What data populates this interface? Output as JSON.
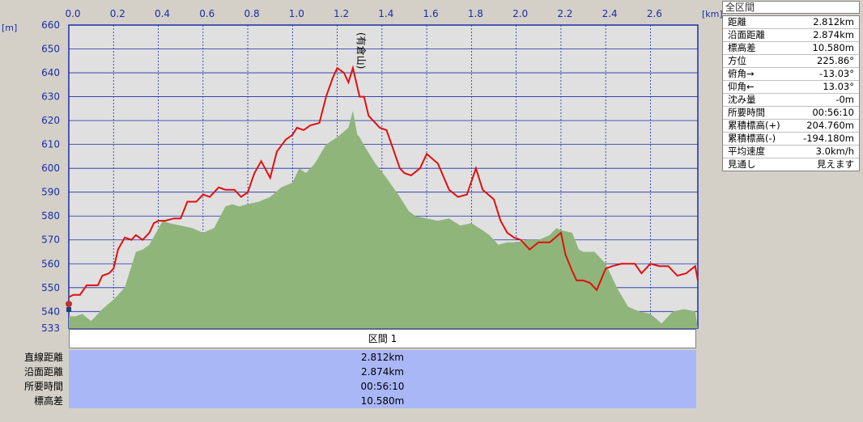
{
  "chart_data": {
    "type": "area",
    "x_unit": "[km]",
    "y_unit": "[m]",
    "x_ticks": [
      "0.0",
      "0.2",
      "0.4",
      "0.6",
      "0.8",
      "1.0",
      "1.2",
      "1.4",
      "1.6",
      "1.8",
      "2.0",
      "2.2",
      "2.4",
      "2.6"
    ],
    "y_ticks": [
      "660",
      "650",
      "640",
      "630",
      "620",
      "610",
      "600",
      "590",
      "580",
      "570",
      "560",
      "550",
      "540",
      "533"
    ],
    "xlim": [
      0,
      2.812
    ],
    "ylim": [
      533,
      660
    ],
    "grid": true,
    "peak_label": "(有倉山)",
    "peak_x": 1.3,
    "series": [
      {
        "color": "#e01010",
        "x": [
          0,
          0.02,
          0.05,
          0.08,
          0.1,
          0.13,
          0.15,
          0.18,
          0.2,
          0.22,
          0.25,
          0.28,
          0.3,
          0.33,
          0.36,
          0.38,
          0.4,
          0.43,
          0.47,
          0.5,
          0.53,
          0.57,
          0.6,
          0.63,
          0.67,
          0.7,
          0.74,
          0.77,
          0.8,
          0.83,
          0.86,
          0.9,
          0.93,
          0.97,
          1.0,
          1.02,
          1.05,
          1.08,
          1.12,
          1.15,
          1.18,
          1.2,
          1.23,
          1.25,
          1.27,
          1.3,
          1.32,
          1.34,
          1.37,
          1.39,
          1.42,
          1.45,
          1.48,
          1.5,
          1.53,
          1.57,
          1.6,
          1.65,
          1.7,
          1.74,
          1.78,
          1.82,
          1.85,
          1.9,
          1.93,
          1.96,
          1.99,
          2.02,
          2.06,
          2.1,
          2.15,
          2.2,
          2.22,
          2.25,
          2.27,
          2.3,
          2.33,
          2.36,
          2.4,
          2.43,
          2.47,
          2.5,
          2.53,
          2.56,
          2.6,
          2.64,
          2.68,
          2.72,
          2.76,
          2.8,
          2.812
        ],
        "y": [
          546,
          547,
          547,
          551,
          551,
          551,
          555,
          556,
          558,
          566,
          571,
          570,
          572,
          570,
          573,
          577,
          578,
          578,
          579,
          579,
          586,
          586,
          589,
          588,
          592,
          591,
          591,
          588,
          590,
          598,
          603,
          596,
          607,
          612,
          614,
          617,
          616,
          618,
          619,
          630,
          638,
          642,
          640,
          636,
          642,
          630,
          630,
          622,
          619,
          617,
          616,
          608,
          600,
          598,
          597,
          600,
          606,
          602,
          591,
          588,
          589,
          600,
          591,
          587,
          578,
          573,
          571,
          570,
          566,
          569,
          569,
          573,
          564,
          557,
          553,
          553,
          552,
          549,
          558,
          559,
          560,
          560,
          560,
          556,
          560,
          559,
          559,
          555,
          556,
          559,
          553
        ]
      },
      {
        "color": "#8fb57a",
        "x": [
          0,
          0.03,
          0.06,
          0.1,
          0.15,
          0.2,
          0.25,
          0.28,
          0.3,
          0.33,
          0.36,
          0.39,
          0.42,
          0.45,
          0.5,
          0.55,
          0.6,
          0.65,
          0.7,
          0.73,
          0.76,
          0.8,
          0.85,
          0.9,
          0.95,
          1.0,
          1.03,
          1.06,
          1.1,
          1.15,
          1.2,
          1.25,
          1.27,
          1.29,
          1.3,
          1.33,
          1.37,
          1.42,
          1.48,
          1.52,
          1.55,
          1.6,
          1.65,
          1.7,
          1.75,
          1.8,
          1.85,
          1.88,
          1.92,
          1.96,
          2.0,
          2.05,
          2.1,
          2.15,
          2.18,
          2.2,
          2.25,
          2.28,
          2.3,
          2.35,
          2.4,
          2.45,
          2.5,
          2.55,
          2.6,
          2.65,
          2.7,
          2.75,
          2.8,
          2.812
        ],
        "y": [
          538,
          538,
          539,
          536,
          541,
          545,
          550,
          559,
          565,
          566,
          568,
          573,
          578,
          577,
          576,
          575,
          573,
          575,
          584,
          585,
          584,
          585,
          586,
          588,
          592,
          594,
          600,
          598,
          602,
          610,
          613,
          617,
          624,
          614,
          613,
          608,
          602,
          596,
          588,
          582,
          580,
          579,
          578,
          579,
          576,
          577,
          574,
          572,
          568,
          569,
          569,
          570,
          570,
          572,
          575,
          574,
          573,
          566,
          565,
          565,
          560,
          550,
          542,
          540,
          539,
          535,
          540,
          541,
          540,
          533
        ]
      }
    ]
  },
  "summary": {
    "title": "全区間",
    "rows": [
      {
        "k": "距離",
        "v": "2.812km"
      },
      {
        "k": "沿面距離",
        "v": "2.874km"
      },
      {
        "k": "標高差",
        "v": "10.580m"
      },
      {
        "k": "方位",
        "v": "225.86°"
      },
      {
        "k": "俯角→",
        "v": "-13.03°"
      },
      {
        "k": "仰角←",
        "v": "13.03°"
      },
      {
        "k": "沈み量",
        "v": "-0m"
      },
      {
        "k": "所要時間",
        "v": "00:56:10"
      },
      {
        "k": "累積標高(+)",
        "v": "204.760m"
      },
      {
        "k": "累積標高(-)",
        "v": "-194.180m"
      },
      {
        "k": "平均速度",
        "v": "3.0km/h"
      },
      {
        "k": "見通し",
        "v": "見えます"
      }
    ]
  },
  "section": {
    "header": "区間 1",
    "rows": [
      {
        "label": "直線距離",
        "value": "2.812km"
      },
      {
        "label": "沿面距離",
        "value": "2.874km"
      },
      {
        "label": "所要時間",
        "value": "00:56:10"
      },
      {
        "label": "標高差",
        "value": "10.580m"
      }
    ]
  }
}
